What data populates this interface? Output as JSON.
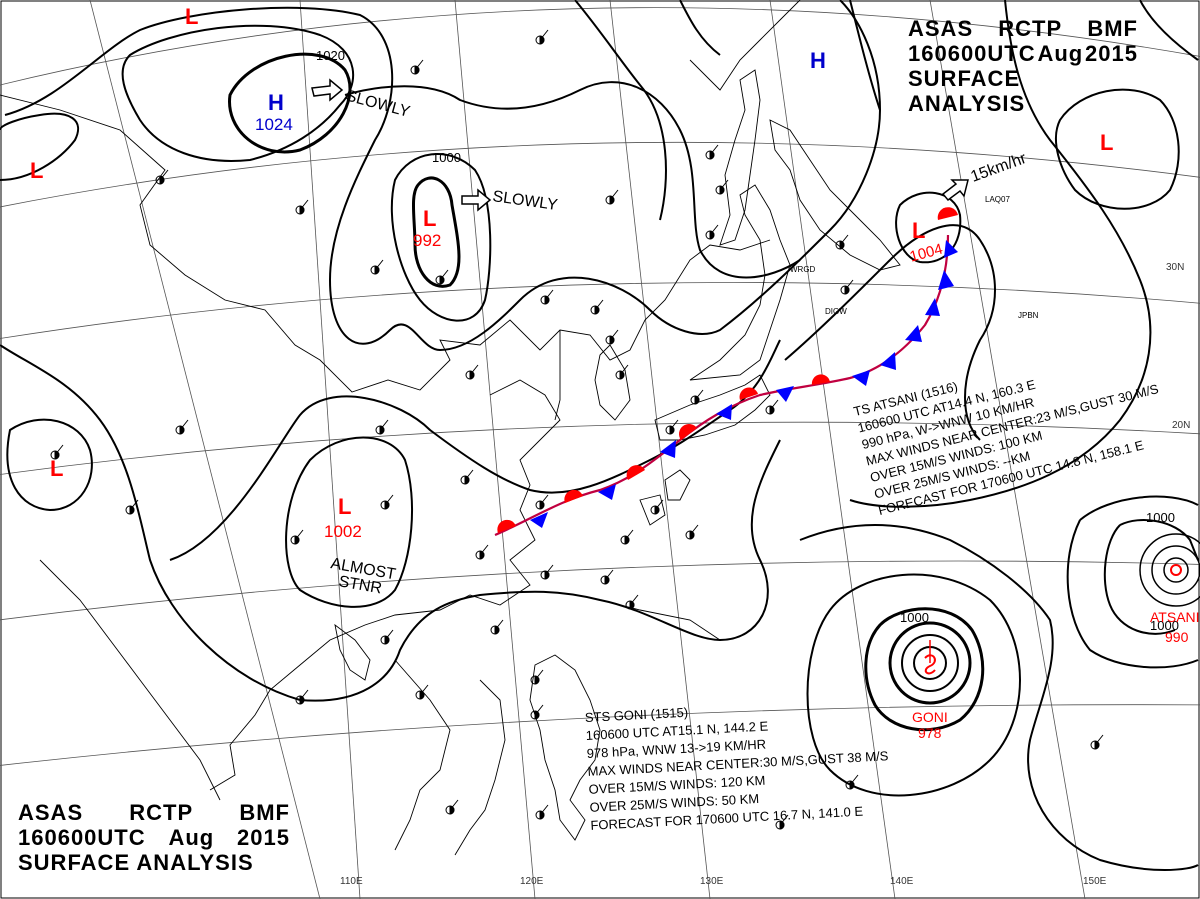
{
  "title": {
    "agency": "ASAS",
    "station": "RCTP",
    "office": "BMF",
    "time": "160600UTC",
    "month": "Aug",
    "year": "2015",
    "product": "SURFACE ANALYSIS"
  },
  "pressure_centers": [
    {
      "type": "H",
      "value": "1024",
      "color": "#0000cc"
    },
    {
      "type": "H",
      "value": "",
      "color": "#0000cc"
    },
    {
      "type": "L",
      "value": "992",
      "color": "#ff0000"
    },
    {
      "type": "L",
      "value": "1002",
      "color": "#ff0000"
    },
    {
      "type": "L",
      "value": "1004",
      "color": "#ff0000"
    },
    {
      "type": "L",
      "value": "",
      "color": "#ff0000"
    },
    {
      "type": "L",
      "value": "",
      "color": "#ff0000"
    },
    {
      "type": "L",
      "value": "",
      "color": "#ff0000"
    },
    {
      "type": "L",
      "value": "",
      "color": "#ff0000"
    }
  ],
  "isobar_labels": [
    "1020",
    "1000",
    "1000",
    "1000",
    "1000"
  ],
  "motion_labels": [
    "SLOWLY",
    "SLOWLY",
    "15km/hr",
    "ALMOST",
    "STNR"
  ],
  "typhoon_names": [
    "GONI",
    "978",
    "ATSANI",
    "990"
  ],
  "typhoon_goni": [
    "STS  GONI  (1515)",
    "160600  UTC  AT15.1 N, 144.2 E",
    "978 hPa, WNW  13->19 KM/HR",
    "MAX WINDS NEAR CENTER:30 M/S,GUST 38 M/S",
    "OVER 15M/S WINDS: 120 KM",
    "OVER 25M/S WINDS: 50 KM",
    "FORECAST FOR 170600 UTC 16.7 N, 141.0 E"
  ],
  "typhoon_atsani": [
    "TS  ATSANI  (1516)",
    "160600  UTC  AT14.4 N, 160.3 E",
    "990 hPa, W->WNW  10 KM/HR",
    "MAX WINDS NEAR CENTER:23 M/S,GUST 30 M/S",
    "OVER 15M/S WINDS: 100 KM",
    "OVER 25M/S WINDS: --KM",
    "FORECAST FOR 170600 UTC 14.8 N, 158.1 E"
  ],
  "longitude_labels": [
    "110E",
    "120E",
    "130E",
    "140E",
    "150E"
  ],
  "latitude_labels": [
    "30N",
    "20N"
  ],
  "station_ids": [
    "WRGD",
    "DIGW",
    "JPBN",
    "LAQ07"
  ],
  "colors": {
    "land": "#000000",
    "isobar": "#000000",
    "grid": "#555555",
    "low": "#ff0000",
    "high": "#0000cc",
    "warm_front": "#ff0000",
    "cold_front": "#0000ff"
  }
}
